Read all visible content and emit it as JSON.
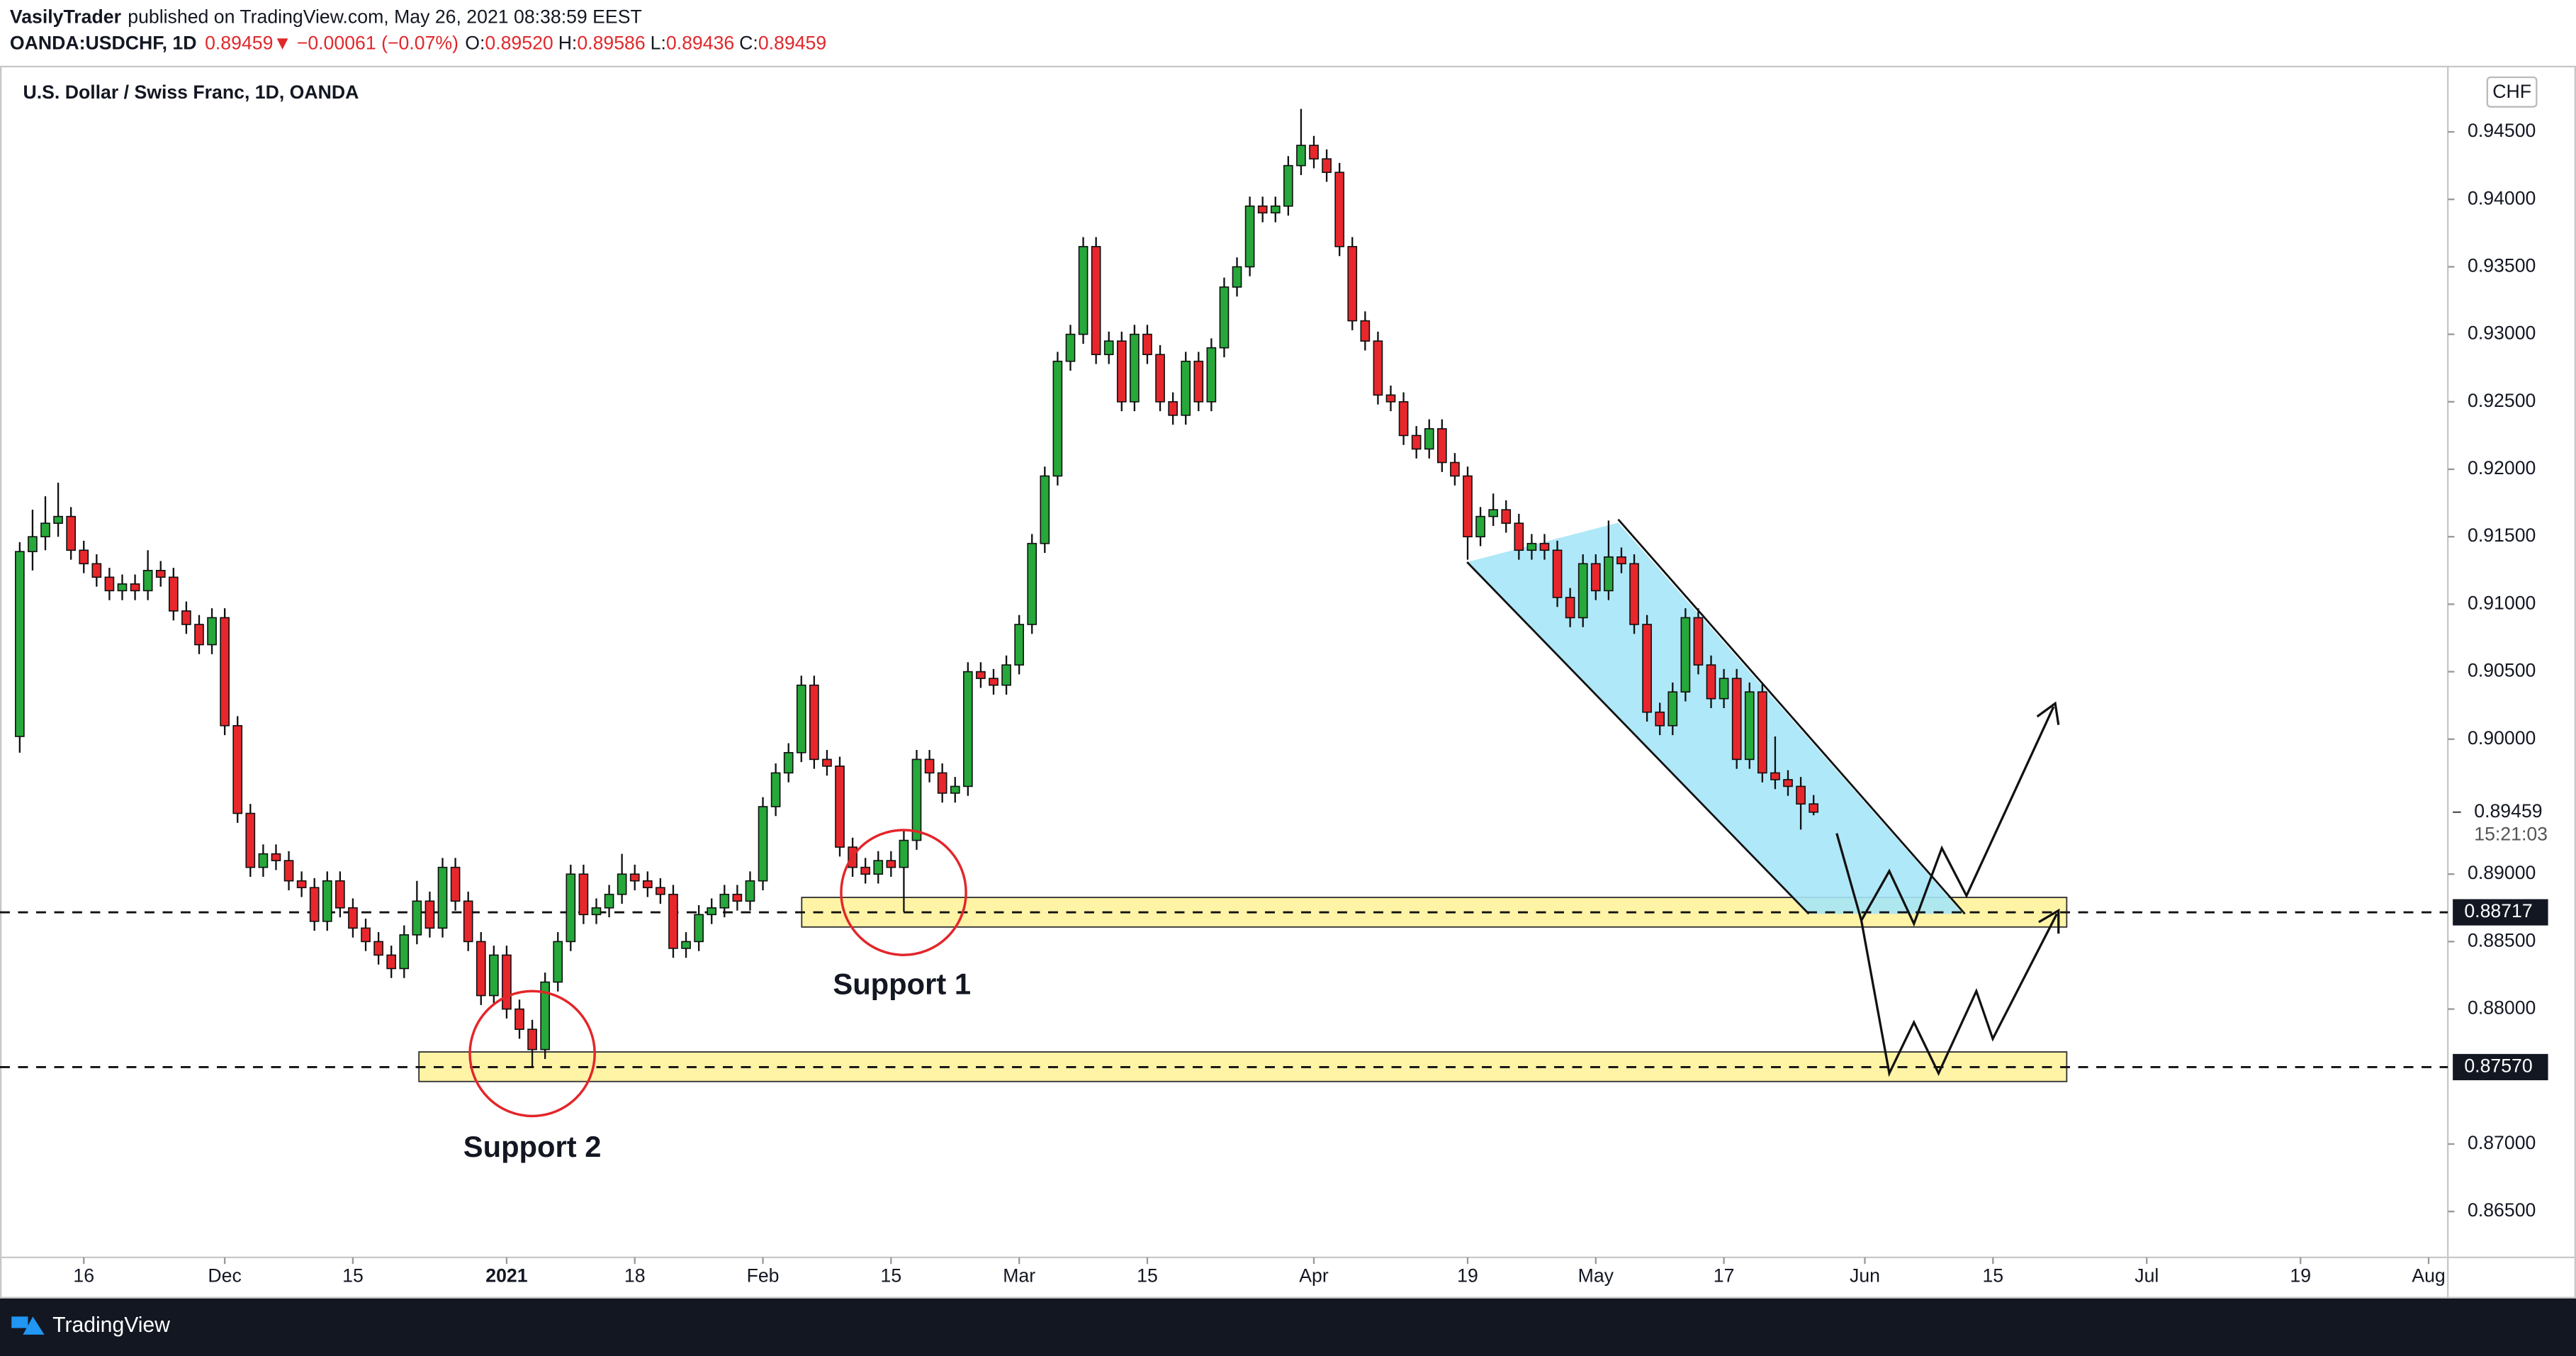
{
  "header": {
    "author": "VasilyTrader",
    "published": "published on TradingView.com, May 26, 2021 08:38:59 EEST",
    "symbol": "OANDA:USDCHF, 1D",
    "price": "0.89459",
    "arrow": "▼",
    "change": "−0.00061 (−0.07%)",
    "o_label": "O:",
    "o": "0.89520",
    "h_label": "H:",
    "h": "0.89586",
    "l_label": "L:",
    "l": "0.89436",
    "c_label": "C:",
    "c": "0.89459"
  },
  "chart_data": {
    "type": "candlestick",
    "title": "U.S. Dollar / Swiss Franc, 1D, OANDA",
    "currency": "CHF",
    "up_color": "#26a83b",
    "down_color": "#e8272c",
    "ohlc": [
      [
        0.9002,
        0.9146,
        0.899,
        0.9139
      ],
      [
        0.9139,
        0.917,
        0.9125,
        0.915
      ],
      [
        0.915,
        0.918,
        0.914,
        0.916
      ],
      [
        0.916,
        0.919,
        0.915,
        0.9165
      ],
      [
        0.9165,
        0.9172,
        0.9133,
        0.914
      ],
      [
        0.914,
        0.9147,
        0.9123,
        0.913
      ],
      [
        0.913,
        0.9137,
        0.9113,
        0.912
      ],
      [
        0.912,
        0.9127,
        0.9103,
        0.911
      ],
      [
        0.911,
        0.9122,
        0.9103,
        0.9115
      ],
      [
        0.9115,
        0.9122,
        0.9103,
        0.911
      ],
      [
        0.911,
        0.914,
        0.9103,
        0.9125
      ],
      [
        0.9125,
        0.9132,
        0.9113,
        0.912
      ],
      [
        0.912,
        0.9127,
        0.9088,
        0.9095
      ],
      [
        0.9095,
        0.9102,
        0.9078,
        0.9085
      ],
      [
        0.9085,
        0.9092,
        0.9063,
        0.907
      ],
      [
        0.907,
        0.9097,
        0.9063,
        0.909
      ],
      [
        0.909,
        0.9097,
        0.9003,
        0.901
      ],
      [
        0.901,
        0.9017,
        0.8938,
        0.8945
      ],
      [
        0.8945,
        0.8952,
        0.8898,
        0.8905
      ],
      [
        0.8905,
        0.8922,
        0.8898,
        0.8915
      ],
      [
        0.8915,
        0.8922,
        0.8903,
        0.891
      ],
      [
        0.891,
        0.8917,
        0.8888,
        0.8895
      ],
      [
        0.8895,
        0.8902,
        0.8883,
        0.889
      ],
      [
        0.889,
        0.8897,
        0.8858,
        0.8865
      ],
      [
        0.8865,
        0.8902,
        0.8858,
        0.8895
      ],
      [
        0.8895,
        0.8902,
        0.8868,
        0.8875
      ],
      [
        0.8875,
        0.8882,
        0.8853,
        0.886
      ],
      [
        0.886,
        0.8867,
        0.8843,
        0.885
      ],
      [
        0.885,
        0.8857,
        0.8833,
        0.884
      ],
      [
        0.884,
        0.8847,
        0.8823,
        0.883
      ],
      [
        0.883,
        0.8862,
        0.8823,
        0.8855
      ],
      [
        0.8855,
        0.8895,
        0.8848,
        0.888
      ],
      [
        0.888,
        0.8887,
        0.8853,
        0.886
      ],
      [
        0.886,
        0.8912,
        0.8853,
        0.8905
      ],
      [
        0.8905,
        0.8912,
        0.8873,
        0.888
      ],
      [
        0.888,
        0.8887,
        0.8843,
        0.885
      ],
      [
        0.885,
        0.8857,
        0.8803,
        0.881
      ],
      [
        0.881,
        0.8847,
        0.8803,
        0.884
      ],
      [
        0.884,
        0.8847,
        0.8793,
        0.88
      ],
      [
        0.88,
        0.8807,
        0.8778,
        0.8785
      ],
      [
        0.8785,
        0.8792,
        0.8757,
        0.877
      ],
      [
        0.877,
        0.8827,
        0.8763,
        0.882
      ],
      [
        0.882,
        0.8857,
        0.8813,
        0.885
      ],
      [
        0.885,
        0.8907,
        0.8843,
        0.89
      ],
      [
        0.89,
        0.8907,
        0.8863,
        0.887
      ],
      [
        0.887,
        0.8882,
        0.8863,
        0.8875
      ],
      [
        0.8875,
        0.8892,
        0.8868,
        0.8885
      ],
      [
        0.8885,
        0.8915,
        0.8878,
        0.89
      ],
      [
        0.89,
        0.8907,
        0.8888,
        0.8895
      ],
      [
        0.8895,
        0.8902,
        0.8883,
        0.889
      ],
      [
        0.889,
        0.8897,
        0.8878,
        0.8885
      ],
      [
        0.8885,
        0.8892,
        0.8838,
        0.8845
      ],
      [
        0.8845,
        0.8857,
        0.8838,
        0.885
      ],
      [
        0.885,
        0.8877,
        0.8843,
        0.887
      ],
      [
        0.887,
        0.8882,
        0.8863,
        0.8875
      ],
      [
        0.8875,
        0.8892,
        0.8868,
        0.8885
      ],
      [
        0.8885,
        0.8892,
        0.8873,
        0.888
      ],
      [
        0.888,
        0.8902,
        0.8873,
        0.8895
      ],
      [
        0.8895,
        0.8957,
        0.8888,
        0.895
      ],
      [
        0.895,
        0.8982,
        0.8943,
        0.8975
      ],
      [
        0.8975,
        0.8997,
        0.8968,
        0.899
      ],
      [
        0.899,
        0.9047,
        0.8983,
        0.904
      ],
      [
        0.904,
        0.9047,
        0.8978,
        0.8985
      ],
      [
        0.8985,
        0.8992,
        0.8973,
        0.898
      ],
      [
        0.898,
        0.8987,
        0.8913,
        0.892
      ],
      [
        0.892,
        0.8927,
        0.8898,
        0.8905
      ],
      [
        0.8905,
        0.8912,
        0.8893,
        0.89
      ],
      [
        0.89,
        0.8917,
        0.8893,
        0.891
      ],
      [
        0.891,
        0.8917,
        0.8898,
        0.8905
      ],
      [
        0.8905,
        0.8932,
        0.8872,
        0.8925
      ],
      [
        0.8925,
        0.8992,
        0.8918,
        0.8985
      ],
      [
        0.8985,
        0.8992,
        0.8968,
        0.8975
      ],
      [
        0.8975,
        0.8982,
        0.8953,
        0.896
      ],
      [
        0.896,
        0.8972,
        0.8953,
        0.8965
      ],
      [
        0.8965,
        0.9057,
        0.8958,
        0.905
      ],
      [
        0.905,
        0.9057,
        0.9038,
        0.9045
      ],
      [
        0.9045,
        0.9052,
        0.9033,
        0.904
      ],
      [
        0.904,
        0.9062,
        0.9033,
        0.9055
      ],
      [
        0.9055,
        0.9092,
        0.9048,
        0.9085
      ],
      [
        0.9085,
        0.9152,
        0.9078,
        0.9145
      ],
      [
        0.9145,
        0.9202,
        0.9138,
        0.9195
      ],
      [
        0.9195,
        0.9287,
        0.9188,
        0.928
      ],
      [
        0.928,
        0.9307,
        0.9273,
        0.93
      ],
      [
        0.93,
        0.9372,
        0.9293,
        0.9365
      ],
      [
        0.9365,
        0.9372,
        0.9278,
        0.9285
      ],
      [
        0.9285,
        0.9302,
        0.9278,
        0.9295
      ],
      [
        0.9295,
        0.9302,
        0.9243,
        0.925
      ],
      [
        0.925,
        0.9307,
        0.9243,
        0.93
      ],
      [
        0.93,
        0.9307,
        0.9278,
        0.9285
      ],
      [
        0.9285,
        0.9292,
        0.9243,
        0.925
      ],
      [
        0.925,
        0.9257,
        0.9233,
        0.924
      ],
      [
        0.924,
        0.9287,
        0.9233,
        0.928
      ],
      [
        0.928,
        0.9287,
        0.9243,
        0.925
      ],
      [
        0.925,
        0.9297,
        0.9243,
        0.929
      ],
      [
        0.929,
        0.9342,
        0.9283,
        0.9335
      ],
      [
        0.9335,
        0.9357,
        0.9328,
        0.935
      ],
      [
        0.935,
        0.9402,
        0.9343,
        0.9395
      ],
      [
        0.9395,
        0.9402,
        0.9383,
        0.939
      ],
      [
        0.939,
        0.9402,
        0.9383,
        0.9395
      ],
      [
        0.9395,
        0.9432,
        0.9388,
        0.9425
      ],
      [
        0.9425,
        0.9467,
        0.9418,
        0.944
      ],
      [
        0.944,
        0.9447,
        0.9423,
        0.943
      ],
      [
        0.943,
        0.9437,
        0.9413,
        0.942
      ],
      [
        0.942,
        0.9427,
        0.9358,
        0.9365
      ],
      [
        0.9365,
        0.9372,
        0.9303,
        0.931
      ],
      [
        0.931,
        0.9317,
        0.9288,
        0.9295
      ],
      [
        0.9295,
        0.9302,
        0.9248,
        0.9255
      ],
      [
        0.9255,
        0.9262,
        0.9243,
        0.925
      ],
      [
        0.925,
        0.9257,
        0.9218,
        0.9225
      ],
      [
        0.9225,
        0.9232,
        0.9208,
        0.9215
      ],
      [
        0.9215,
        0.9237,
        0.9208,
        0.923
      ],
      [
        0.923,
        0.9237,
        0.9198,
        0.9205
      ],
      [
        0.9205,
        0.9212,
        0.9188,
        0.9195
      ],
      [
        0.9195,
        0.9202,
        0.9133,
        0.915
      ],
      [
        0.915,
        0.9172,
        0.9143,
        0.9165
      ],
      [
        0.9165,
        0.9182,
        0.9158,
        0.917
      ],
      [
        0.917,
        0.9177,
        0.9153,
        0.916
      ],
      [
        0.916,
        0.9167,
        0.9133,
        0.914
      ],
      [
        0.914,
        0.9152,
        0.9133,
        0.9145
      ],
      [
        0.9145,
        0.9152,
        0.9133,
        0.914
      ],
      [
        0.914,
        0.9147,
        0.9098,
        0.9105
      ],
      [
        0.9105,
        0.9112,
        0.9083,
        0.909
      ],
      [
        0.909,
        0.9137,
        0.9083,
        0.913
      ],
      [
        0.913,
        0.9137,
        0.9103,
        0.911
      ],
      [
        0.911,
        0.9162,
        0.9103,
        0.9135
      ],
      [
        0.9135,
        0.9142,
        0.9123,
        0.913
      ],
      [
        0.913,
        0.9137,
        0.9078,
        0.9085
      ],
      [
        0.9085,
        0.9092,
        0.9013,
        0.902
      ],
      [
        0.902,
        0.9027,
        0.9003,
        0.901
      ],
      [
        0.901,
        0.9042,
        0.9003,
        0.9035
      ],
      [
        0.9035,
        0.9097,
        0.9028,
        0.909
      ],
      [
        0.909,
        0.9097,
        0.9048,
        0.9055
      ],
      [
        0.9055,
        0.9062,
        0.9023,
        0.903
      ],
      [
        0.903,
        0.9052,
        0.9023,
        0.9045
      ],
      [
        0.9045,
        0.9052,
        0.8978,
        0.8985
      ],
      [
        0.8985,
        0.9042,
        0.8978,
        0.9035
      ],
      [
        0.9035,
        0.9042,
        0.8968,
        0.8975
      ],
      [
        0.8975,
        0.9002,
        0.8963,
        0.897
      ],
      [
        0.897,
        0.8977,
        0.8958,
        0.8965
      ],
      [
        0.8965,
        0.8972,
        0.8933,
        0.8952
      ],
      [
        0.8952,
        0.89586,
        0.89436,
        0.89459
      ]
    ],
    "xlim": [
      -1.54,
      189.5
    ],
    "xticks": [
      {
        "value": 5,
        "label": "16"
      },
      {
        "value": 16,
        "label": "Dec"
      },
      {
        "value": 26,
        "label": "15"
      },
      {
        "value": 38,
        "label": "2021"
      },
      {
        "value": 48,
        "label": "18"
      },
      {
        "value": 58,
        "label": "Feb"
      },
      {
        "value": 68,
        "label": "15"
      },
      {
        "value": 78,
        "label": "Mar"
      },
      {
        "value": 88,
        "label": "15"
      },
      {
        "value": 101,
        "label": "Apr"
      },
      {
        "value": 113,
        "label": "19"
      },
      {
        "value": 123,
        "label": "May"
      },
      {
        "value": 133,
        "label": "17"
      },
      {
        "value": 144,
        "label": "Jun"
      },
      {
        "value": 154,
        "label": "15"
      },
      {
        "value": 166,
        "label": "Jul"
      },
      {
        "value": 178,
        "label": "19"
      },
      {
        "value": 188,
        "label": "Aug"
      }
    ],
    "ylim": [
      0.8616,
      0.9499
    ],
    "yticks": [
      {
        "value": 0.945,
        "label": "0.94500"
      },
      {
        "value": 0.94,
        "label": "0.94000"
      },
      {
        "value": 0.935,
        "label": "0.93500"
      },
      {
        "value": 0.93,
        "label": "0.93000"
      },
      {
        "value": 0.925,
        "label": "0.92500"
      },
      {
        "value": 0.92,
        "label": "0.92000"
      },
      {
        "value": 0.915,
        "label": "0.91500"
      },
      {
        "value": 0.91,
        "label": "0.91000"
      },
      {
        "value": 0.905,
        "label": "0.90500"
      },
      {
        "value": 0.9,
        "label": "0.90000"
      },
      {
        "value": 0.89,
        "label": "0.89000"
      },
      {
        "value": 0.885,
        "label": "0.88500"
      },
      {
        "value": 0.88,
        "label": "0.88000"
      },
      {
        "value": 0.87,
        "label": "0.87000"
      },
      {
        "value": 0.865,
        "label": "0.86500"
      }
    ],
    "levels": [
      {
        "value": 0.88717,
        "label": "0.88717"
      },
      {
        "value": 0.8757,
        "label": "0.87570"
      }
    ],
    "last_price": {
      "value": 0.89459,
      "label": "0.89459"
    },
    "countdown": "15:21:03",
    "annotations": [
      "Support 1",
      "Support 2"
    ],
    "footer": "TradingView"
  }
}
